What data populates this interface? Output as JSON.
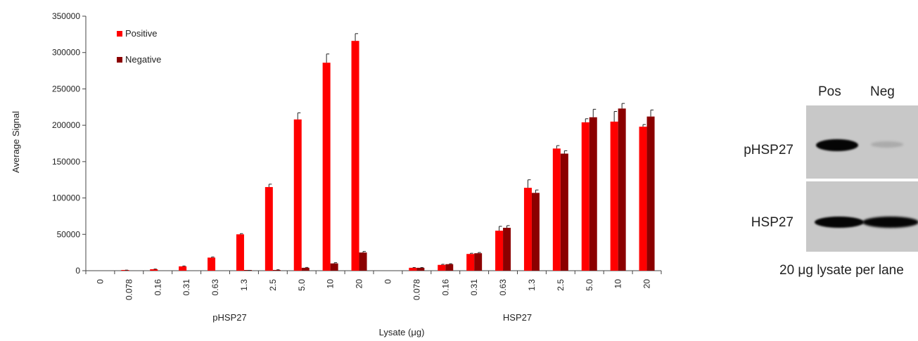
{
  "chart_data": {
    "type": "bar",
    "ylabel": "Average Signal",
    "xlabel": "Lysate (μg)",
    "ylim": [
      0,
      350000
    ],
    "yticks": [
      "0",
      "50000",
      "100000",
      "150000",
      "200000",
      "250000",
      "300000",
      "350000"
    ],
    "groups": [
      {
        "label": "pHSP27",
        "categories": [
          "0",
          "0.078",
          "0.16",
          "0.31",
          "0.63",
          "1.3",
          "2.5",
          "5.0",
          "10",
          "20"
        ],
        "series": [
          {
            "name": "Positive",
            "values": [
              0,
              500,
              2000,
              6000,
              18000,
              50000,
              115000,
              208000,
              286000,
              316000
            ],
            "errors": [
              0,
              300,
              300,
              500,
              800,
              1000,
              4000,
              9000,
              12000,
              10000
            ]
          },
          {
            "name": "Negative",
            "values": [
              0,
              0,
              0,
              0,
              0,
              300,
              1000,
              4000,
              10000,
              25000
            ],
            "errors": [
              0,
              0,
              0,
              0,
              0,
              200,
              300,
              500,
              1000,
              1500
            ]
          }
        ]
      },
      {
        "label": "HSP27",
        "categories": [
          "0",
          "0.078",
          "0.16",
          "0.31",
          "0.63",
          "1.3",
          "2.5",
          "5.0",
          "10",
          "20"
        ],
        "series": [
          {
            "name": "Positive",
            "values": [
              0,
              4000,
              8000,
              23000,
              55000,
              114000,
              168000,
              204000,
              205000,
              198000
            ],
            "errors": [
              0,
              400,
              800,
              1000,
              6000,
              11000,
              4000,
              5000,
              14000,
              3000
            ]
          },
          {
            "name": "Negative",
            "values": [
              0,
              4000,
              9000,
              24000,
              59000,
              107000,
              161000,
              211000,
              223000,
              212000
            ],
            "errors": [
              0,
              400,
              600,
              1000,
              3000,
              4000,
              4000,
              11000,
              7000,
              9000
            ]
          }
        ]
      }
    ],
    "legend": {
      "placement": "top-left",
      "entries": [
        "Positive",
        "Negative"
      ]
    },
    "colors": {
      "Positive": "#ff0000",
      "Negative": "#8b0000"
    },
    "grid": false
  },
  "blot": {
    "lanes": [
      "Pos",
      "Neg"
    ],
    "rows": [
      {
        "label": "pHSP27",
        "pos_intensity": 1.0,
        "neg_intensity": 0.15
      },
      {
        "label": "HSP27",
        "pos_intensity": 1.0,
        "neg_intensity": 1.0
      }
    ],
    "caption": "20 μg lysate per lane"
  }
}
